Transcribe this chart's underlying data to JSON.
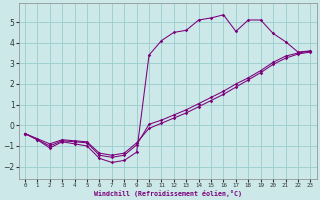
{
  "xlabel": "Windchill (Refroidissement éolien,°C)",
  "xlim": [
    -0.5,
    23.5
  ],
  "ylim": [
    -2.6,
    5.9
  ],
  "bg_color": "#cce8e8",
  "line_color": "#7b007b",
  "grid_color": "#99cccc",
  "line1_x": [
    0,
    1,
    2,
    3,
    4,
    5,
    6,
    7,
    8,
    9,
    10,
    11,
    12,
    13,
    14,
    15,
    16,
    17,
    18,
    19,
    20,
    21,
    22,
    23
  ],
  "line1_y": [
    -0.4,
    -0.7,
    -1.1,
    -0.8,
    -0.9,
    -1.0,
    -1.6,
    -1.8,
    -1.7,
    -1.3,
    3.4,
    4.1,
    4.5,
    4.6,
    5.1,
    5.2,
    5.35,
    4.55,
    5.1,
    5.1,
    4.45,
    4.05,
    3.55,
    3.6
  ],
  "line2_x": [
    0,
    1,
    2,
    3,
    4,
    5,
    6,
    7,
    8,
    9,
    10,
    11,
    12,
    13,
    14,
    15,
    16,
    17,
    18,
    19,
    20,
    21,
    22,
    23
  ],
  "line2_y": [
    -0.4,
    -0.7,
    -1.0,
    -0.75,
    -0.8,
    -0.85,
    -1.45,
    -1.55,
    -1.45,
    -0.95,
    0.05,
    0.25,
    0.5,
    0.75,
    1.05,
    1.35,
    1.65,
    2.0,
    2.3,
    2.65,
    3.05,
    3.35,
    3.5,
    3.6
  ],
  "line3_x": [
    0,
    1,
    2,
    3,
    4,
    5,
    6,
    7,
    8,
    9,
    10,
    11,
    12,
    13,
    14,
    15,
    16,
    17,
    18,
    19,
    20,
    21,
    22,
    23
  ],
  "line3_y": [
    -0.4,
    -0.65,
    -0.9,
    -0.7,
    -0.75,
    -0.8,
    -1.35,
    -1.45,
    -1.35,
    -0.85,
    -0.15,
    0.1,
    0.35,
    0.6,
    0.9,
    1.2,
    1.5,
    1.85,
    2.2,
    2.55,
    2.95,
    3.25,
    3.45,
    3.55
  ],
  "yticks": [
    -2,
    -1,
    0,
    1,
    2,
    3,
    4,
    5
  ],
  "xticks": [
    0,
    1,
    2,
    3,
    4,
    5,
    6,
    7,
    8,
    9,
    10,
    11,
    12,
    13,
    14,
    15,
    16,
    17,
    18,
    19,
    20,
    21,
    22,
    23
  ]
}
